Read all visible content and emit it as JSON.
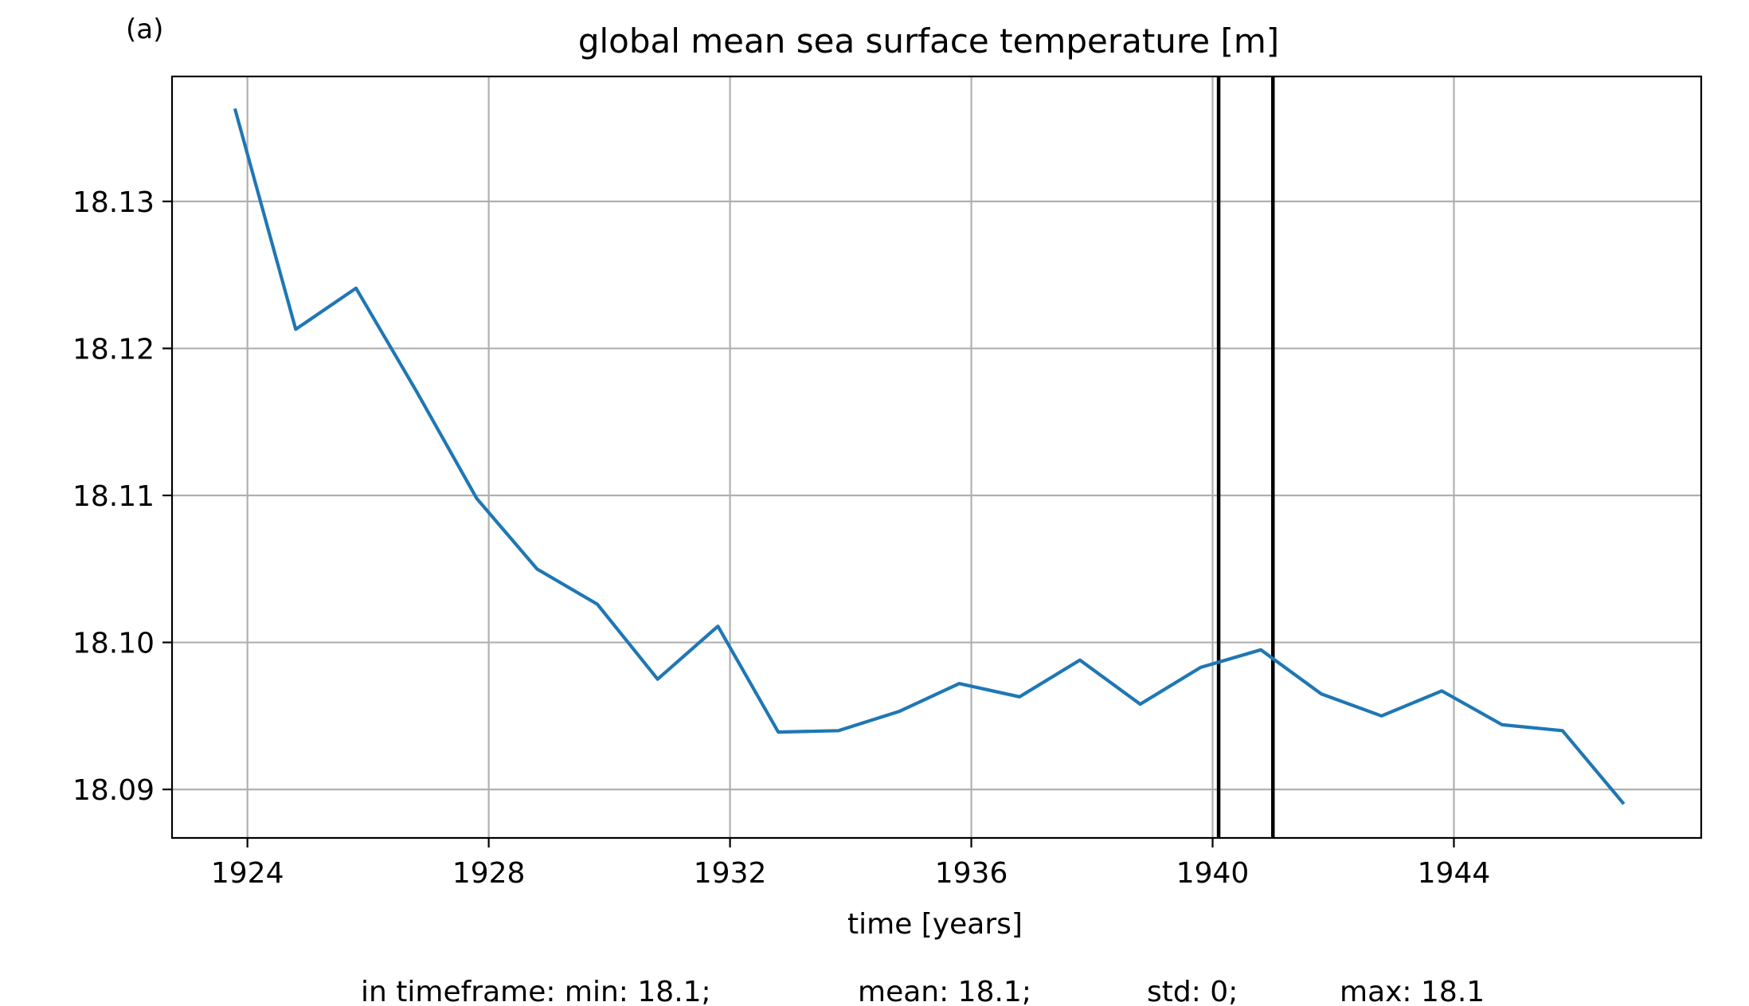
{
  "chart_data": {
    "type": "line",
    "panel_label": "(a)",
    "title": "global mean sea surface temperature [m]",
    "xlabel": "time [years]",
    "ylabel": "",
    "xlim": [
      1922.75,
      1948.1
    ],
    "ylim": [
      18.0867,
      18.1385
    ],
    "x_ticks": [
      1924,
      1928,
      1932,
      1936,
      1940,
      1944
    ],
    "y_ticks": [
      18.09,
      18.1,
      18.11,
      18.12,
      18.13
    ],
    "y_tick_labels": [
      "18.09",
      "18.10",
      "18.11",
      "18.12",
      "18.13"
    ],
    "grid": true,
    "line_color": "#1f77b4",
    "series": [
      {
        "x": [
          1923.8,
          1924.8,
          1925.8,
          1926.8,
          1927.8,
          1928.8,
          1929.8,
          1930.8,
          1931.8,
          1932.8,
          1933.8,
          1934.8,
          1935.8,
          1936.8,
          1937.8,
          1938.8,
          1939.8,
          1940.8,
          1941.8,
          1942.8,
          1943.8,
          1944.8,
          1945.8,
          1946.8
        ],
        "values": [
          18.1362,
          18.1213,
          18.1241,
          18.1171,
          18.1098,
          18.105,
          18.1026,
          18.0975,
          18.1011,
          18.0939,
          18.094,
          18.0953,
          18.0972,
          18.0963,
          18.0988,
          18.0958,
          18.0983,
          18.0995,
          18.0965,
          18.095,
          18.0967,
          18.0944,
          18.094,
          18.0891
        ]
      }
    ],
    "vertical_lines": [
      1940.1,
      1941.0
    ],
    "vertical_line_color": "#000000",
    "stats_text": {
      "min": "in timeframe: min: 18.1;",
      "mean": "mean: 18.1;",
      "std": "std: 0;",
      "max": "max: 18.1"
    }
  }
}
